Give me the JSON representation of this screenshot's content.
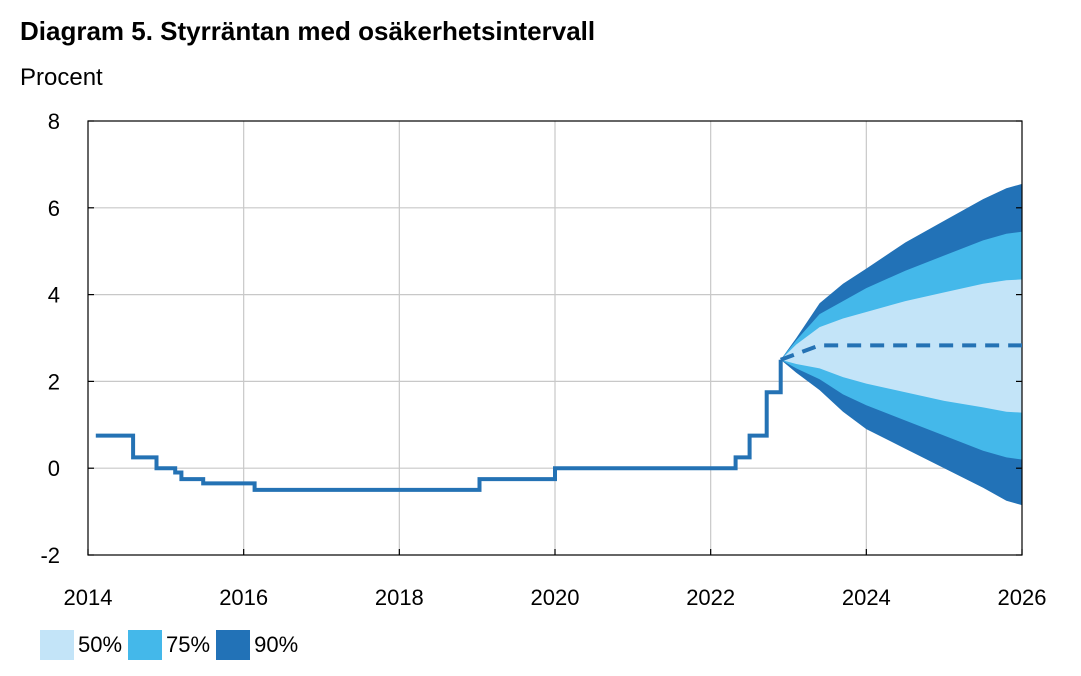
{
  "header": {
    "title": "Diagram 5. Styrräntan med osäkerhetsintervall",
    "unit": "Procent"
  },
  "colors": {
    "line": "#2472b4",
    "band50": "#c3e4f8",
    "band75": "#44b8ea",
    "band90": "#2272b7",
    "grid": "#c8c8c8"
  },
  "chart_data": {
    "type": "line",
    "title": "Diagram 5. Styrräntan med osäkerhetsintervall",
    "ylabel": "Procent",
    "xlim": [
      2014,
      2026
    ],
    "ylim": [
      -2,
      8
    ],
    "xticks": [
      2014,
      2016,
      2018,
      2020,
      2022,
      2024,
      2026
    ],
    "yticks": [
      -2,
      0,
      2,
      4,
      6,
      8
    ],
    "grid": true,
    "legend": "bottom-left",
    "historical": {
      "x": [
        2014.1,
        2014.58,
        2014.58,
        2014.88,
        2014.88,
        2015.12,
        2015.12,
        2015.2,
        2015.2,
        2015.48,
        2015.48,
        2016.14,
        2016.14,
        2019.03,
        2019.03,
        2020.0,
        2020.0,
        2022.32,
        2022.32,
        2022.5,
        2022.5,
        2022.72,
        2022.72,
        2022.9,
        2022.9
      ],
      "y": [
        0.75,
        0.75,
        0.25,
        0.25,
        0.0,
        0.0,
        -0.1,
        -0.1,
        -0.25,
        -0.25,
        -0.35,
        -0.35,
        -0.5,
        -0.5,
        -0.25,
        -0.25,
        0.0,
        0.0,
        0.25,
        0.25,
        0.75,
        0.75,
        1.75,
        1.75,
        2.5
      ]
    },
    "forecast": {
      "x": [
        2022.9,
        2023.4,
        2026.0
      ],
      "y": [
        2.5,
        2.83,
        2.83
      ]
    },
    "bands": [
      {
        "name": "90%",
        "x": [
          2022.9,
          2023.1,
          2023.4,
          2023.7,
          2024.0,
          2024.5,
          2025.0,
          2025.5,
          2025.8,
          2026.0
        ],
        "upper": [
          2.5,
          3.0,
          3.8,
          4.25,
          4.6,
          5.2,
          5.7,
          6.2,
          6.45,
          6.55
        ],
        "lower": [
          2.5,
          2.2,
          1.8,
          1.3,
          0.9,
          0.45,
          0.0,
          -0.45,
          -0.75,
          -0.85
        ]
      },
      {
        "name": "75%",
        "x": [
          2022.9,
          2023.1,
          2023.4,
          2023.7,
          2024.0,
          2024.5,
          2025.0,
          2025.5,
          2025.8,
          2026.0
        ],
        "upper": [
          2.5,
          2.95,
          3.55,
          3.85,
          4.15,
          4.55,
          4.9,
          5.25,
          5.4,
          5.45
        ],
        "lower": [
          2.5,
          2.3,
          2.05,
          1.7,
          1.45,
          1.1,
          0.75,
          0.4,
          0.25,
          0.2
        ]
      },
      {
        "name": "50%",
        "x": [
          2022.9,
          2023.1,
          2023.4,
          2023.7,
          2024.0,
          2024.5,
          2025.0,
          2025.5,
          2025.8,
          2026.0
        ],
        "upper": [
          2.5,
          2.85,
          3.25,
          3.45,
          3.6,
          3.85,
          4.05,
          4.25,
          4.33,
          4.35
        ],
        "lower": [
          2.5,
          2.4,
          2.3,
          2.1,
          1.95,
          1.75,
          1.55,
          1.4,
          1.3,
          1.28
        ]
      }
    ]
  },
  "legend": [
    {
      "label": "50%",
      "color": "#c3e4f8"
    },
    {
      "label": "75%",
      "color": "#44b8ea"
    },
    {
      "label": "90%",
      "color": "#2272b7"
    }
  ]
}
